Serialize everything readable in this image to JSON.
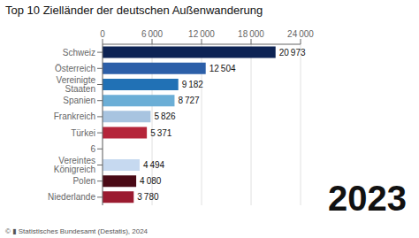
{
  "chart_data": {
    "type": "bar",
    "orientation": "horizontal",
    "title": "Top 10 Zielländer der deutschen Außenwanderung",
    "categories": [
      "Niederlande",
      "Polen",
      "Vereintes Königreich",
      "6",
      "Türkei",
      "Frankreich",
      "Spanien",
      "Vereinigte Staaten",
      "Österreich",
      "Schweiz"
    ],
    "values": [
      3780,
      4080,
      4494,
      0,
      5371,
      5826,
      8727,
      9182,
      12504,
      20973
    ],
    "value_labels": [
      "3 780",
      "4 080",
      "4 494",
      null,
      "5 371",
      "5 826",
      "8 727",
      "9 182",
      "12 504",
      "20 973"
    ],
    "data_labels": true,
    "colors": [
      "#9b1b30",
      "#4a0a16",
      "#c6d9f0",
      "#ffffff",
      "#b5253a",
      "#a8c4e0",
      "#6baed6",
      "#2171b5",
      "#2c5fa8",
      "#0d2354"
    ],
    "xlim": [
      0,
      24000
    ],
    "xticks": [
      0,
      {
        "value": 6000,
        "label": "6 000"
      },
      {
        "value": 12000,
        "label": "12 000"
      },
      {
        "value": 18000,
        "label": "18 000"
      },
      {
        "value": 24000,
        "label": "24 000"
      }
    ],
    "grid": true,
    "annotations": [
      "2023",
      "© ▮ Statistisches Bundesamt (Destatis), 2024"
    ]
  }
}
